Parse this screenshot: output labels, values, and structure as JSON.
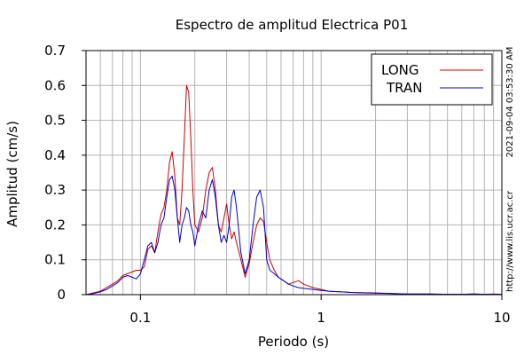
{
  "chart_data": {
    "type": "line",
    "title": "Espectro de amplitud Electrica P01",
    "xlabel": "Periodo (s)",
    "ylabel": "Amplitud (cm/s)",
    "x_scale": "log",
    "xlim": [
      0.05,
      10
    ],
    "ylim": [
      0,
      0.7
    ],
    "grid": true,
    "legend_position": "top-right",
    "x_ticks": [
      {
        "value": 0.1,
        "label": "0.1"
      },
      {
        "value": 1,
        "label": "1"
      },
      {
        "value": 10,
        "label": "10"
      }
    ],
    "y_ticks": [
      {
        "value": 0,
        "label": "0"
      },
      {
        "value": 0.1,
        "label": "0.1"
      },
      {
        "value": 0.2,
        "label": "0.2"
      },
      {
        "value": 0.3,
        "label": "0.3"
      },
      {
        "value": 0.4,
        "label": "0.4"
      },
      {
        "value": 0.5,
        "label": "0.5"
      },
      {
        "value": 0.6,
        "label": "0.6"
      },
      {
        "value": 0.7,
        "label": "0.7"
      }
    ],
    "series": [
      {
        "name": "LONG",
        "color": "#cc0000",
        "x": [
          0.05,
          0.055,
          0.06,
          0.065,
          0.07,
          0.075,
          0.08,
          0.085,
          0.09,
          0.095,
          0.1,
          0.105,
          0.11,
          0.115,
          0.12,
          0.125,
          0.13,
          0.135,
          0.14,
          0.145,
          0.15,
          0.155,
          0.16,
          0.165,
          0.17,
          0.175,
          0.18,
          0.185,
          0.19,
          0.195,
          0.2,
          0.21,
          0.22,
          0.23,
          0.24,
          0.25,
          0.26,
          0.27,
          0.28,
          0.29,
          0.3,
          0.31,
          0.32,
          0.33,
          0.34,
          0.36,
          0.38,
          0.4,
          0.42,
          0.44,
          0.46,
          0.48,
          0.5,
          0.52,
          0.55,
          0.58,
          0.62,
          0.66,
          0.7,
          0.75,
          0.8,
          0.9,
          1.0,
          1.1,
          1.3,
          1.5,
          2.0,
          2.5,
          3.0,
          4.0,
          5.0,
          6.0,
          7.0,
          8.0,
          9.0,
          10.0
        ],
        "values": [
          0.0,
          0.005,
          0.01,
          0.02,
          0.03,
          0.04,
          0.055,
          0.06,
          0.065,
          0.07,
          0.07,
          0.08,
          0.13,
          0.14,
          0.12,
          0.18,
          0.23,
          0.25,
          0.3,
          0.38,
          0.41,
          0.34,
          0.22,
          0.2,
          0.3,
          0.45,
          0.6,
          0.58,
          0.45,
          0.3,
          0.2,
          0.18,
          0.22,
          0.3,
          0.35,
          0.365,
          0.3,
          0.2,
          0.18,
          0.22,
          0.26,
          0.2,
          0.16,
          0.18,
          0.15,
          0.1,
          0.05,
          0.09,
          0.15,
          0.2,
          0.22,
          0.21,
          0.15,
          0.1,
          0.07,
          0.05,
          0.04,
          0.03,
          0.035,
          0.04,
          0.03,
          0.02,
          0.015,
          0.01,
          0.008,
          0.006,
          0.005,
          0.003,
          0.002,
          0.002,
          0.001,
          0.001,
          0.002,
          0.001,
          0.002,
          0.001
        ]
      },
      {
        "name": "TRAN",
        "color": "#0000cc",
        "x": [
          0.05,
          0.055,
          0.06,
          0.065,
          0.07,
          0.075,
          0.08,
          0.085,
          0.09,
          0.095,
          0.1,
          0.105,
          0.11,
          0.115,
          0.12,
          0.125,
          0.13,
          0.135,
          0.14,
          0.145,
          0.15,
          0.155,
          0.16,
          0.165,
          0.17,
          0.175,
          0.18,
          0.185,
          0.19,
          0.195,
          0.2,
          0.21,
          0.22,
          0.23,
          0.24,
          0.25,
          0.26,
          0.27,
          0.28,
          0.29,
          0.3,
          0.31,
          0.32,
          0.33,
          0.34,
          0.36,
          0.38,
          0.4,
          0.42,
          0.44,
          0.46,
          0.48,
          0.5,
          0.52,
          0.55,
          0.58,
          0.62,
          0.66,
          0.7,
          0.75,
          0.8,
          0.9,
          1.0,
          1.1,
          1.3,
          1.5,
          2.0,
          2.5,
          3.0,
          4.0,
          5.0,
          6.0,
          7.0,
          8.0,
          9.0,
          10.0
        ],
        "values": [
          0.0,
          0.003,
          0.008,
          0.015,
          0.025,
          0.035,
          0.05,
          0.055,
          0.05,
          0.045,
          0.06,
          0.1,
          0.14,
          0.15,
          0.12,
          0.15,
          0.2,
          0.22,
          0.28,
          0.33,
          0.34,
          0.3,
          0.22,
          0.15,
          0.2,
          0.22,
          0.25,
          0.24,
          0.2,
          0.18,
          0.14,
          0.2,
          0.24,
          0.22,
          0.3,
          0.33,
          0.28,
          0.2,
          0.15,
          0.17,
          0.15,
          0.2,
          0.28,
          0.3,
          0.25,
          0.12,
          0.06,
          0.1,
          0.2,
          0.28,
          0.3,
          0.25,
          0.1,
          0.07,
          0.06,
          0.05,
          0.04,
          0.03,
          0.025,
          0.02,
          0.018,
          0.015,
          0.012,
          0.01,
          0.008,
          0.006,
          0.004,
          0.003,
          0.002,
          0.002,
          0.001,
          0.001,
          0.002,
          0.001,
          0.001,
          0.001
        ]
      }
    ],
    "side_text_top": "2021-09-04 03:53:30 AM",
    "side_text_bottom": "http://www.lis.ucr.ac.cr"
  }
}
